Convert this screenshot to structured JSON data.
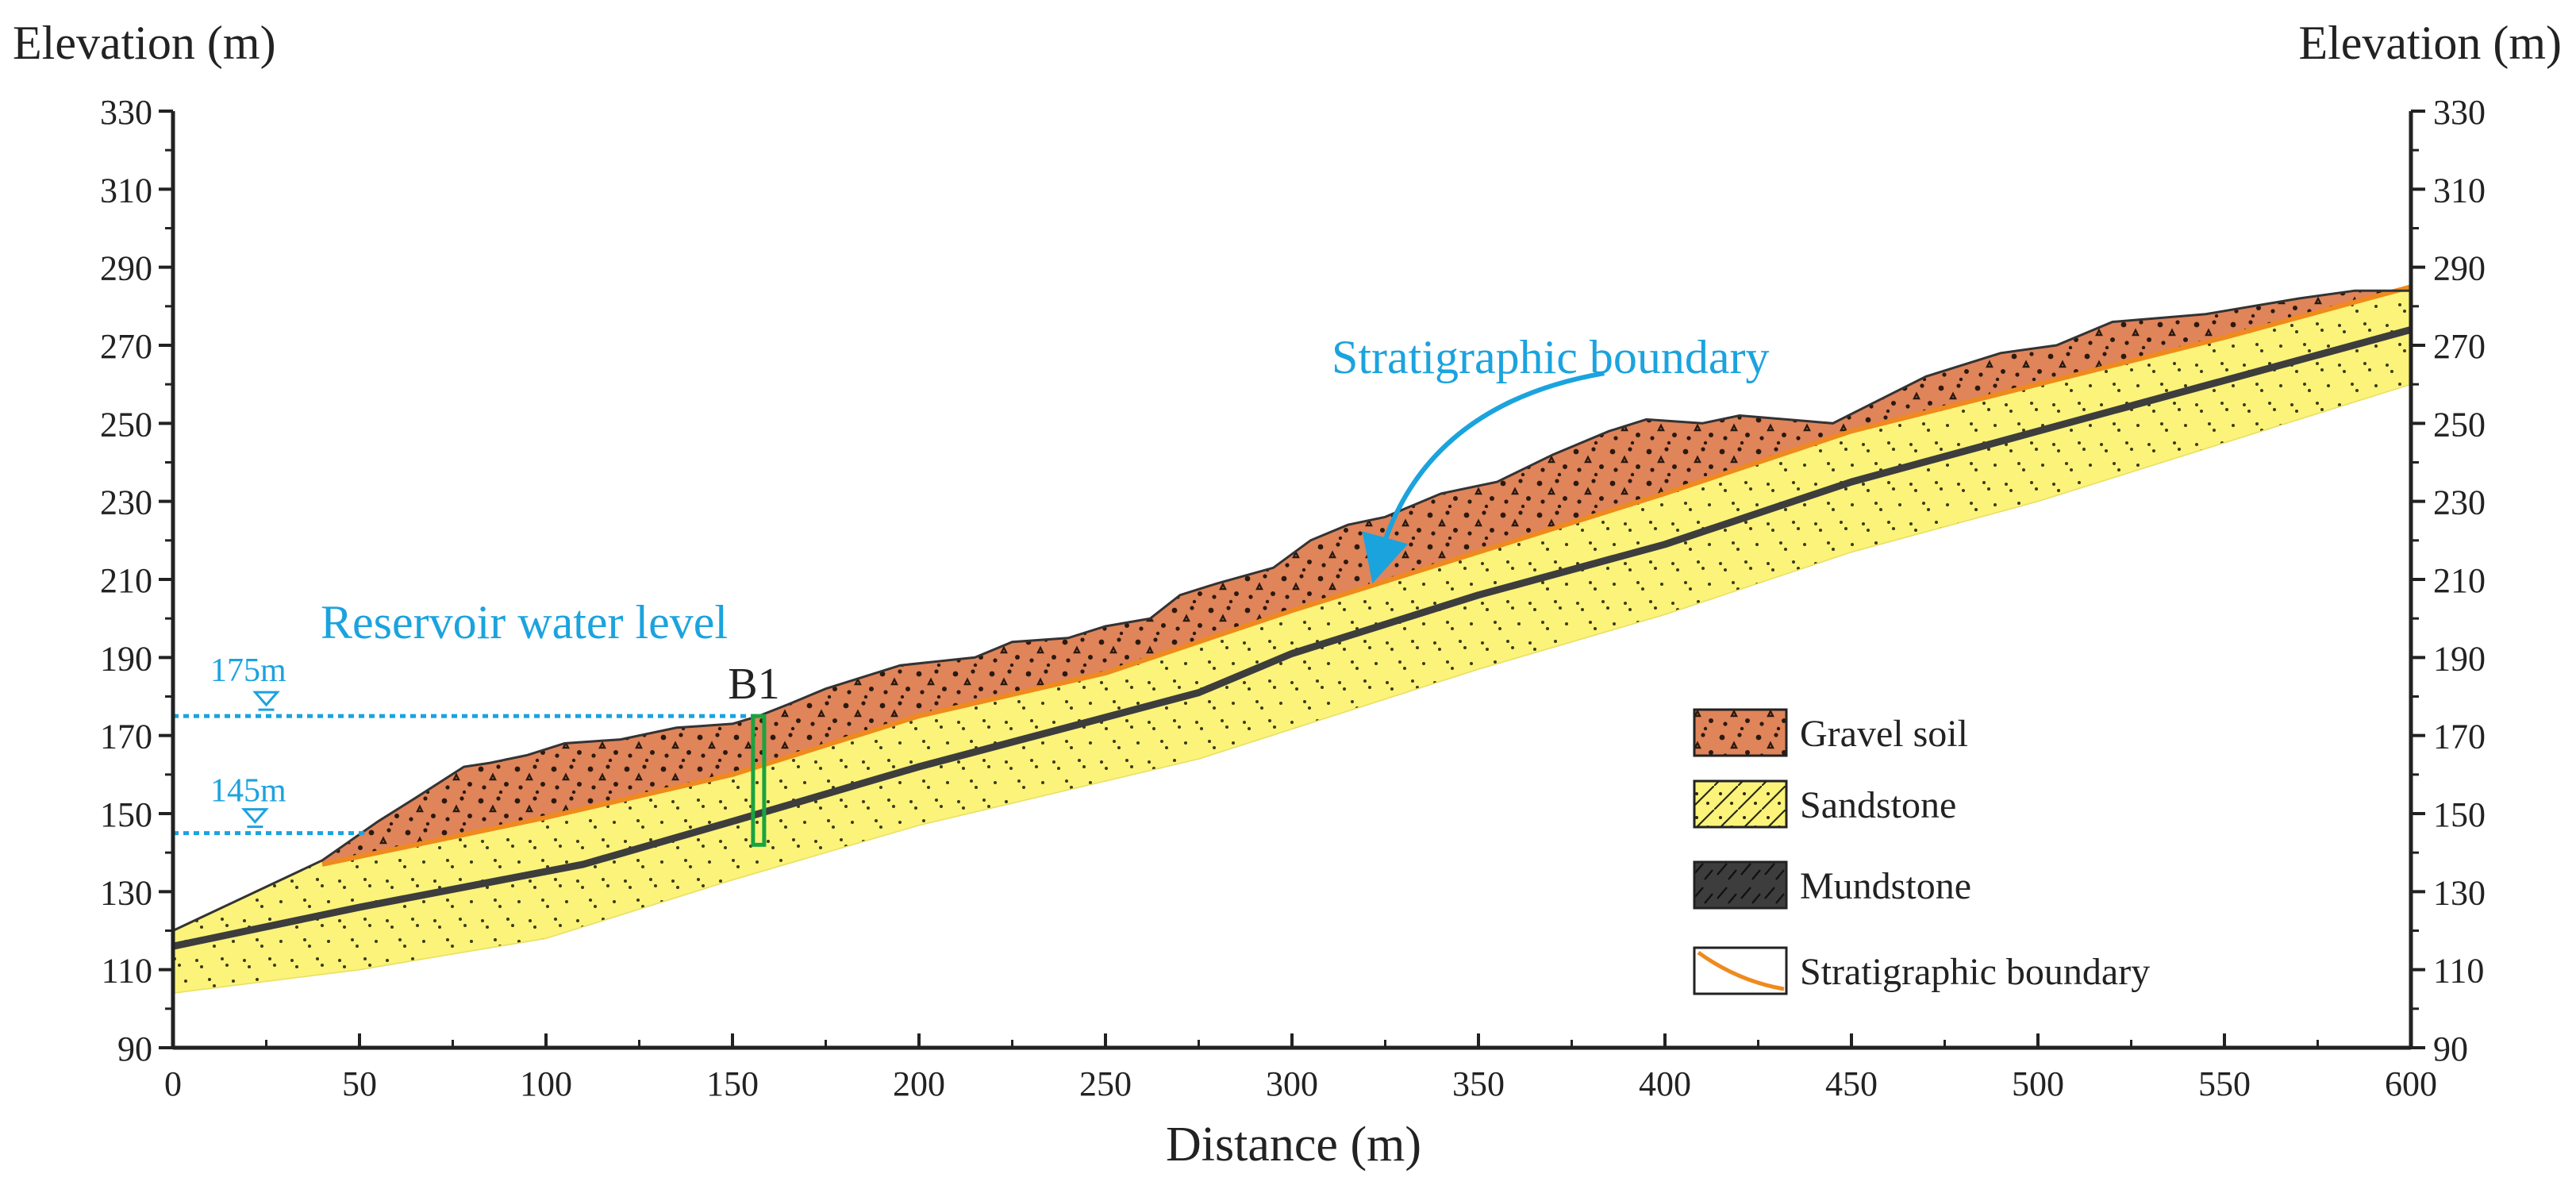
{
  "figure": {
    "left_axis_title": "Elevation (m)",
    "right_axis_title": "Elevation (m)",
    "x_axis_title": "Distance (m)"
  },
  "chart_data": {
    "type": "cross-section",
    "xlim": [
      0,
      600
    ],
    "ylim": [
      90,
      330
    ],
    "x_ticks": [
      0,
      50,
      100,
      150,
      200,
      250,
      300,
      350,
      400,
      450,
      500,
      550,
      600
    ],
    "y_ticks": [
      90,
      110,
      130,
      150,
      170,
      190,
      210,
      230,
      250,
      270,
      290,
      310,
      330
    ],
    "layers": {
      "ground_surface": [
        [
          0,
          120
        ],
        [
          40,
          138
        ],
        [
          55,
          148
        ],
        [
          65,
          154
        ],
        [
          78,
          162
        ],
        [
          85,
          163
        ],
        [
          95,
          165
        ],
        [
          105,
          168
        ],
        [
          120,
          169
        ],
        [
          135,
          172
        ],
        [
          150,
          173
        ],
        [
          157,
          175
        ],
        [
          165,
          178
        ],
        [
          175,
          182
        ],
        [
          185,
          185
        ],
        [
          195,
          188
        ],
        [
          205,
          189
        ],
        [
          215,
          190
        ],
        [
          225,
          194
        ],
        [
          240,
          195
        ],
        [
          250,
          198
        ],
        [
          262,
          200
        ],
        [
          270,
          206
        ],
        [
          280,
          209
        ],
        [
          295,
          213
        ],
        [
          305,
          220
        ],
        [
          315,
          224
        ],
        [
          325,
          226
        ],
        [
          340,
          232
        ],
        [
          355,
          235
        ],
        [
          370,
          242
        ],
        [
          385,
          248
        ],
        [
          395,
          251
        ],
        [
          410,
          250
        ],
        [
          420,
          252
        ],
        [
          445,
          250
        ],
        [
          470,
          262
        ],
        [
          490,
          268
        ],
        [
          505,
          270
        ],
        [
          520,
          276
        ],
        [
          545,
          278
        ],
        [
          570,
          282
        ],
        [
          585,
          284
        ],
        [
          600,
          284
        ]
      ],
      "gravel_base": [
        [
          40,
          137
        ],
        [
          60,
          141
        ],
        [
          100,
          149
        ],
        [
          150,
          160
        ],
        [
          200,
          175
        ],
        [
          250,
          186
        ],
        [
          300,
          202
        ],
        [
          350,
          217
        ],
        [
          400,
          232
        ],
        [
          450,
          248
        ],
        [
          500,
          260
        ],
        [
          550,
          272
        ],
        [
          600,
          285
        ]
      ],
      "mudstone_centerline": [
        [
          0,
          116
        ],
        [
          50,
          126
        ],
        [
          110,
          137
        ],
        [
          150,
          148
        ],
        [
          200,
          162
        ],
        [
          275,
          181
        ],
        [
          300,
          191
        ],
        [
          350,
          206
        ],
        [
          400,
          219
        ],
        [
          450,
          235
        ],
        [
          500,
          248
        ],
        [
          550,
          261
        ],
        [
          600,
          274
        ]
      ],
      "sandstone_bottom": [
        [
          0,
          104
        ],
        [
          50,
          110
        ],
        [
          100,
          118
        ],
        [
          150,
          133
        ],
        [
          200,
          147
        ],
        [
          275,
          164
        ],
        [
          350,
          187
        ],
        [
          400,
          201
        ],
        [
          450,
          217
        ],
        [
          500,
          230
        ],
        [
          550,
          245
        ],
        [
          600,
          260
        ]
      ]
    },
    "water_levels": [
      {
        "label": "175m",
        "elevation": 175,
        "x_start": 0,
        "x_end": 157
      },
      {
        "label": "145m",
        "elevation": 145,
        "x_start": 0,
        "x_end": 52
      }
    ],
    "borehole": {
      "label": "B1",
      "x": 157,
      "top": 175,
      "bottom": 142
    },
    "annotations": [
      {
        "text": "Reservoir water level"
      },
      {
        "text": "Stratigraphic boundary",
        "arrow_target": [
          322,
          212
        ]
      }
    ],
    "legend": [
      {
        "label": "Gravel  soil",
        "color": "#e0845a"
      },
      {
        "label": "Sandstone",
        "color": "#fbf37a"
      },
      {
        "label": "Mundstone",
        "color": "#3d3d3d"
      },
      {
        "label": "Stratigraphic boundary",
        "color": "#ef8a1e"
      }
    ]
  }
}
